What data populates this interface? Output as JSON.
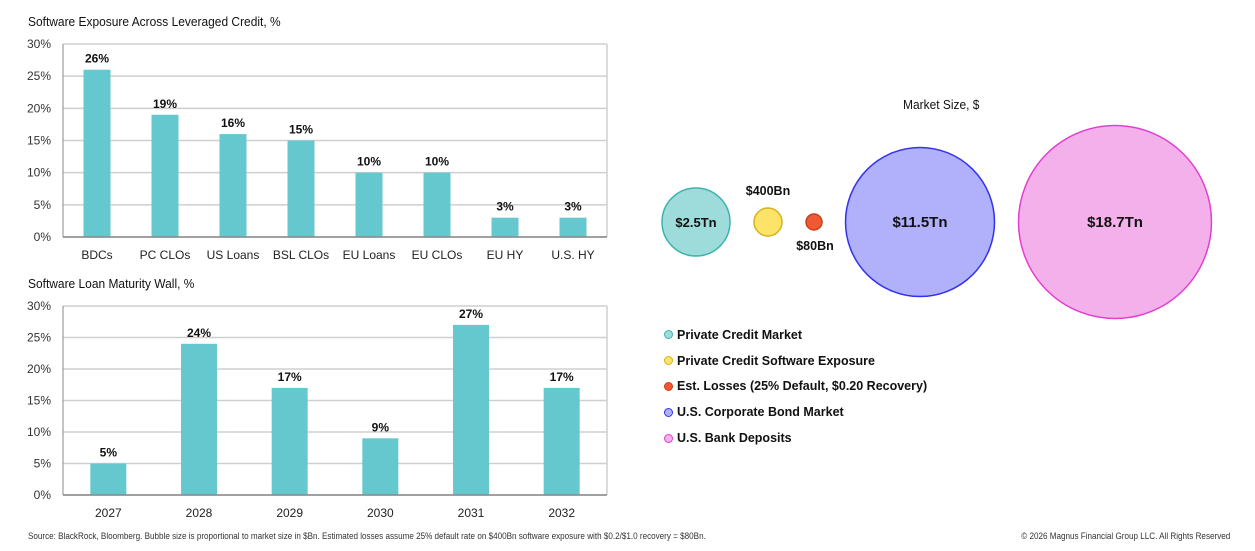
{
  "chart_data": [
    {
      "type": "bar",
      "title": "Software Exposure Across Leveraged Credit, %",
      "categories": [
        "BDCs",
        "PC CLOs",
        "US Loans",
        "BSL CLOs",
        "EU Loans",
        "EU CLOs",
        "EU HY",
        "U.S. HY"
      ],
      "values": [
        26,
        19,
        16,
        15,
        10,
        10,
        3,
        3
      ],
      "data_labels": [
        "26%",
        "19%",
        "16%",
        "15%",
        "10%",
        "10%",
        "3%",
        "3%"
      ],
      "ylim": [
        0,
        30
      ],
      "yticks": [
        "0%",
        "5%",
        "10%",
        "15%",
        "20%",
        "25%",
        "30%"
      ],
      "grid": true,
      "bar_color": "#66c8cf"
    },
    {
      "type": "bar",
      "title": "Software Loan Maturity Wall, %",
      "categories": [
        "2027",
        "2028",
        "2029",
        "2030",
        "2031",
        "2032"
      ],
      "values": [
        5,
        24,
        17,
        9,
        27,
        17
      ],
      "data_labels": [
        "5%",
        "24%",
        "17%",
        "9%",
        "27%",
        "17%"
      ],
      "ylim": [
        0,
        30
      ],
      "yticks": [
        "0%",
        "5%",
        "10%",
        "15%",
        "20%",
        "25%",
        "30%"
      ],
      "grid": true,
      "bar_color": "#66c8cf"
    },
    {
      "type": "bubble",
      "title": "Market Size, $",
      "unit": "$Bn",
      "legend_position": "bottom-left",
      "series": [
        {
          "name": "Private Credit Market",
          "value": 2500,
          "label": "$2.5Tn",
          "fill": "#9edcdb",
          "stroke": "#3fb3ad"
        },
        {
          "name": "Private Credit Software Exposure",
          "value": 400,
          "label": "$400Bn",
          "fill": "#fde468",
          "stroke": "#d4b21a"
        },
        {
          "name": "Est. Losses (25% Default, $0.20 Recovery)",
          "value": 80,
          "label": "$80Bn",
          "fill": "#ef5a33",
          "stroke": "#c8401d"
        },
        {
          "name": "U.S. Corporate Bond Market",
          "value": 11500,
          "label": "$11.5Tn",
          "fill": "#b0b0fb",
          "stroke": "#3333ee"
        },
        {
          "name": "U.S. Bank Deposits",
          "value": 18700,
          "label": "$18.7Tn",
          "fill": "#f4b0ea",
          "stroke": "#e040d0"
        }
      ]
    }
  ],
  "footer": {
    "source": "Source: BlackRock, Bloomberg. Bubble size is proportional to market size in $Bn. Estimated losses assume 25% default rate on $400Bn software exposure with $0.2/$1.0 recovery = $80Bn.",
    "copyright": "© 2026 Magnus Financial Group LLC. All Rights Reserved"
  }
}
